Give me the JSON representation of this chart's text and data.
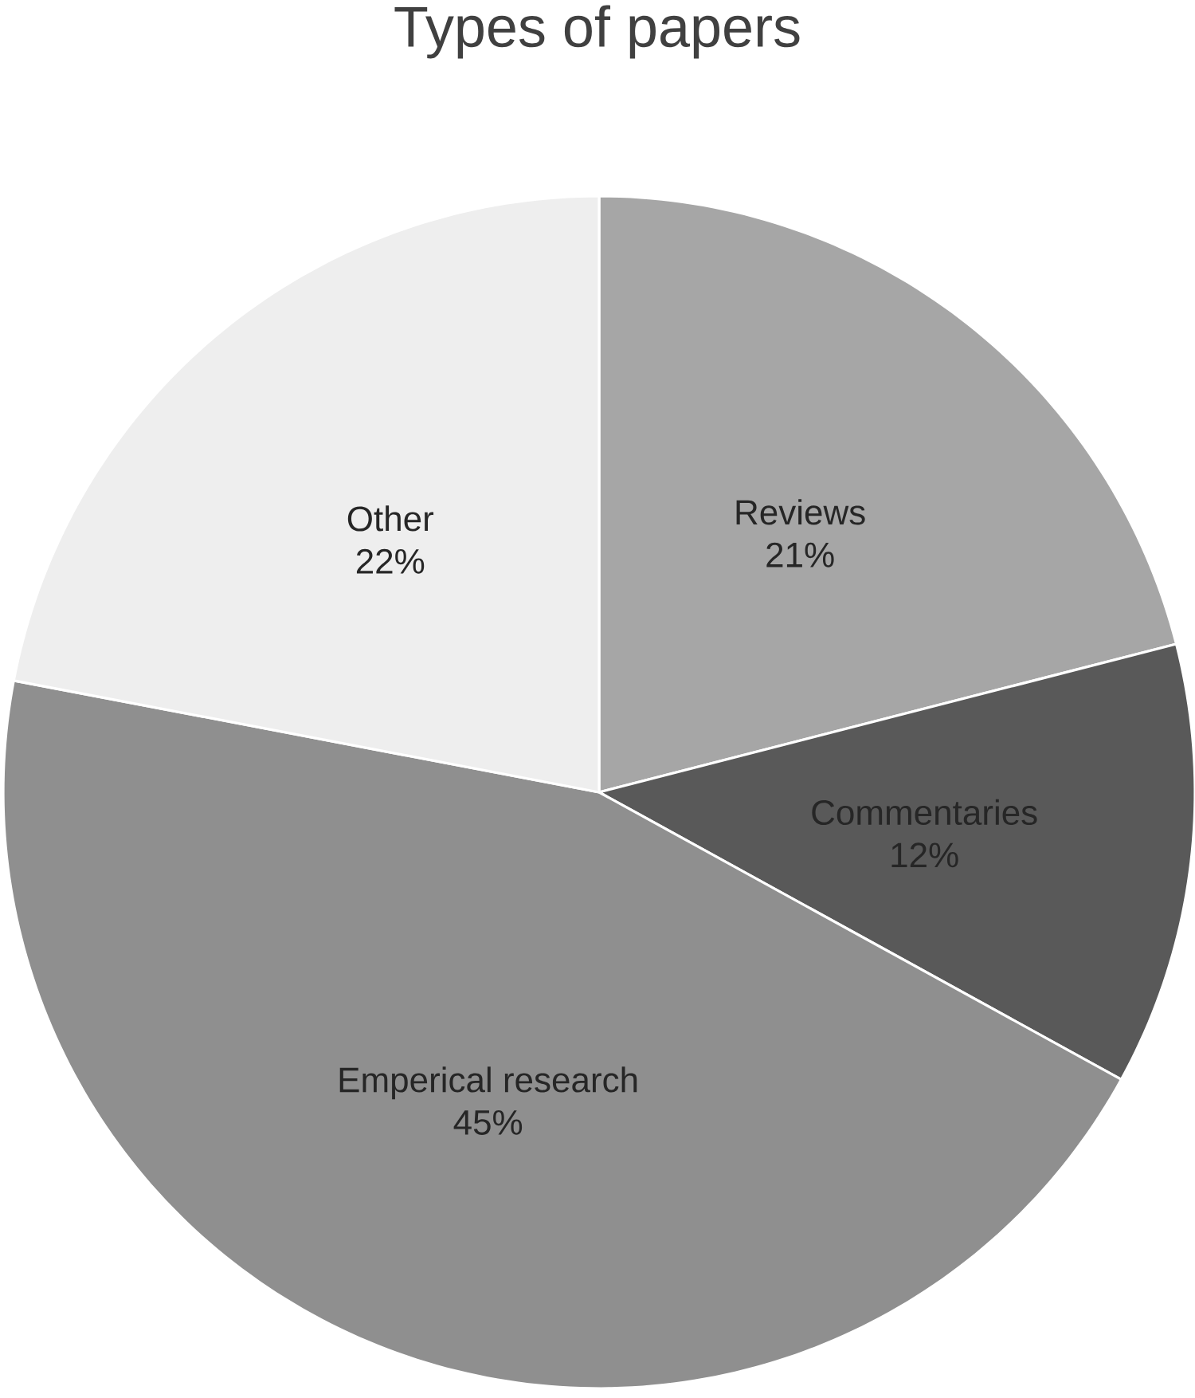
{
  "chart_data": {
    "type": "pie",
    "title": "Types of papers",
    "categories": [
      "Reviews",
      "Commentaries",
      "Emperical research",
      "Other"
    ],
    "values": [
      21,
      12,
      45,
      22
    ],
    "value_labels": [
      "21%",
      "12%",
      "45%",
      "22%"
    ],
    "colors": [
      "#a6a6a6",
      "#595959",
      "#8f8f8f",
      "#eeeeee"
    ]
  }
}
